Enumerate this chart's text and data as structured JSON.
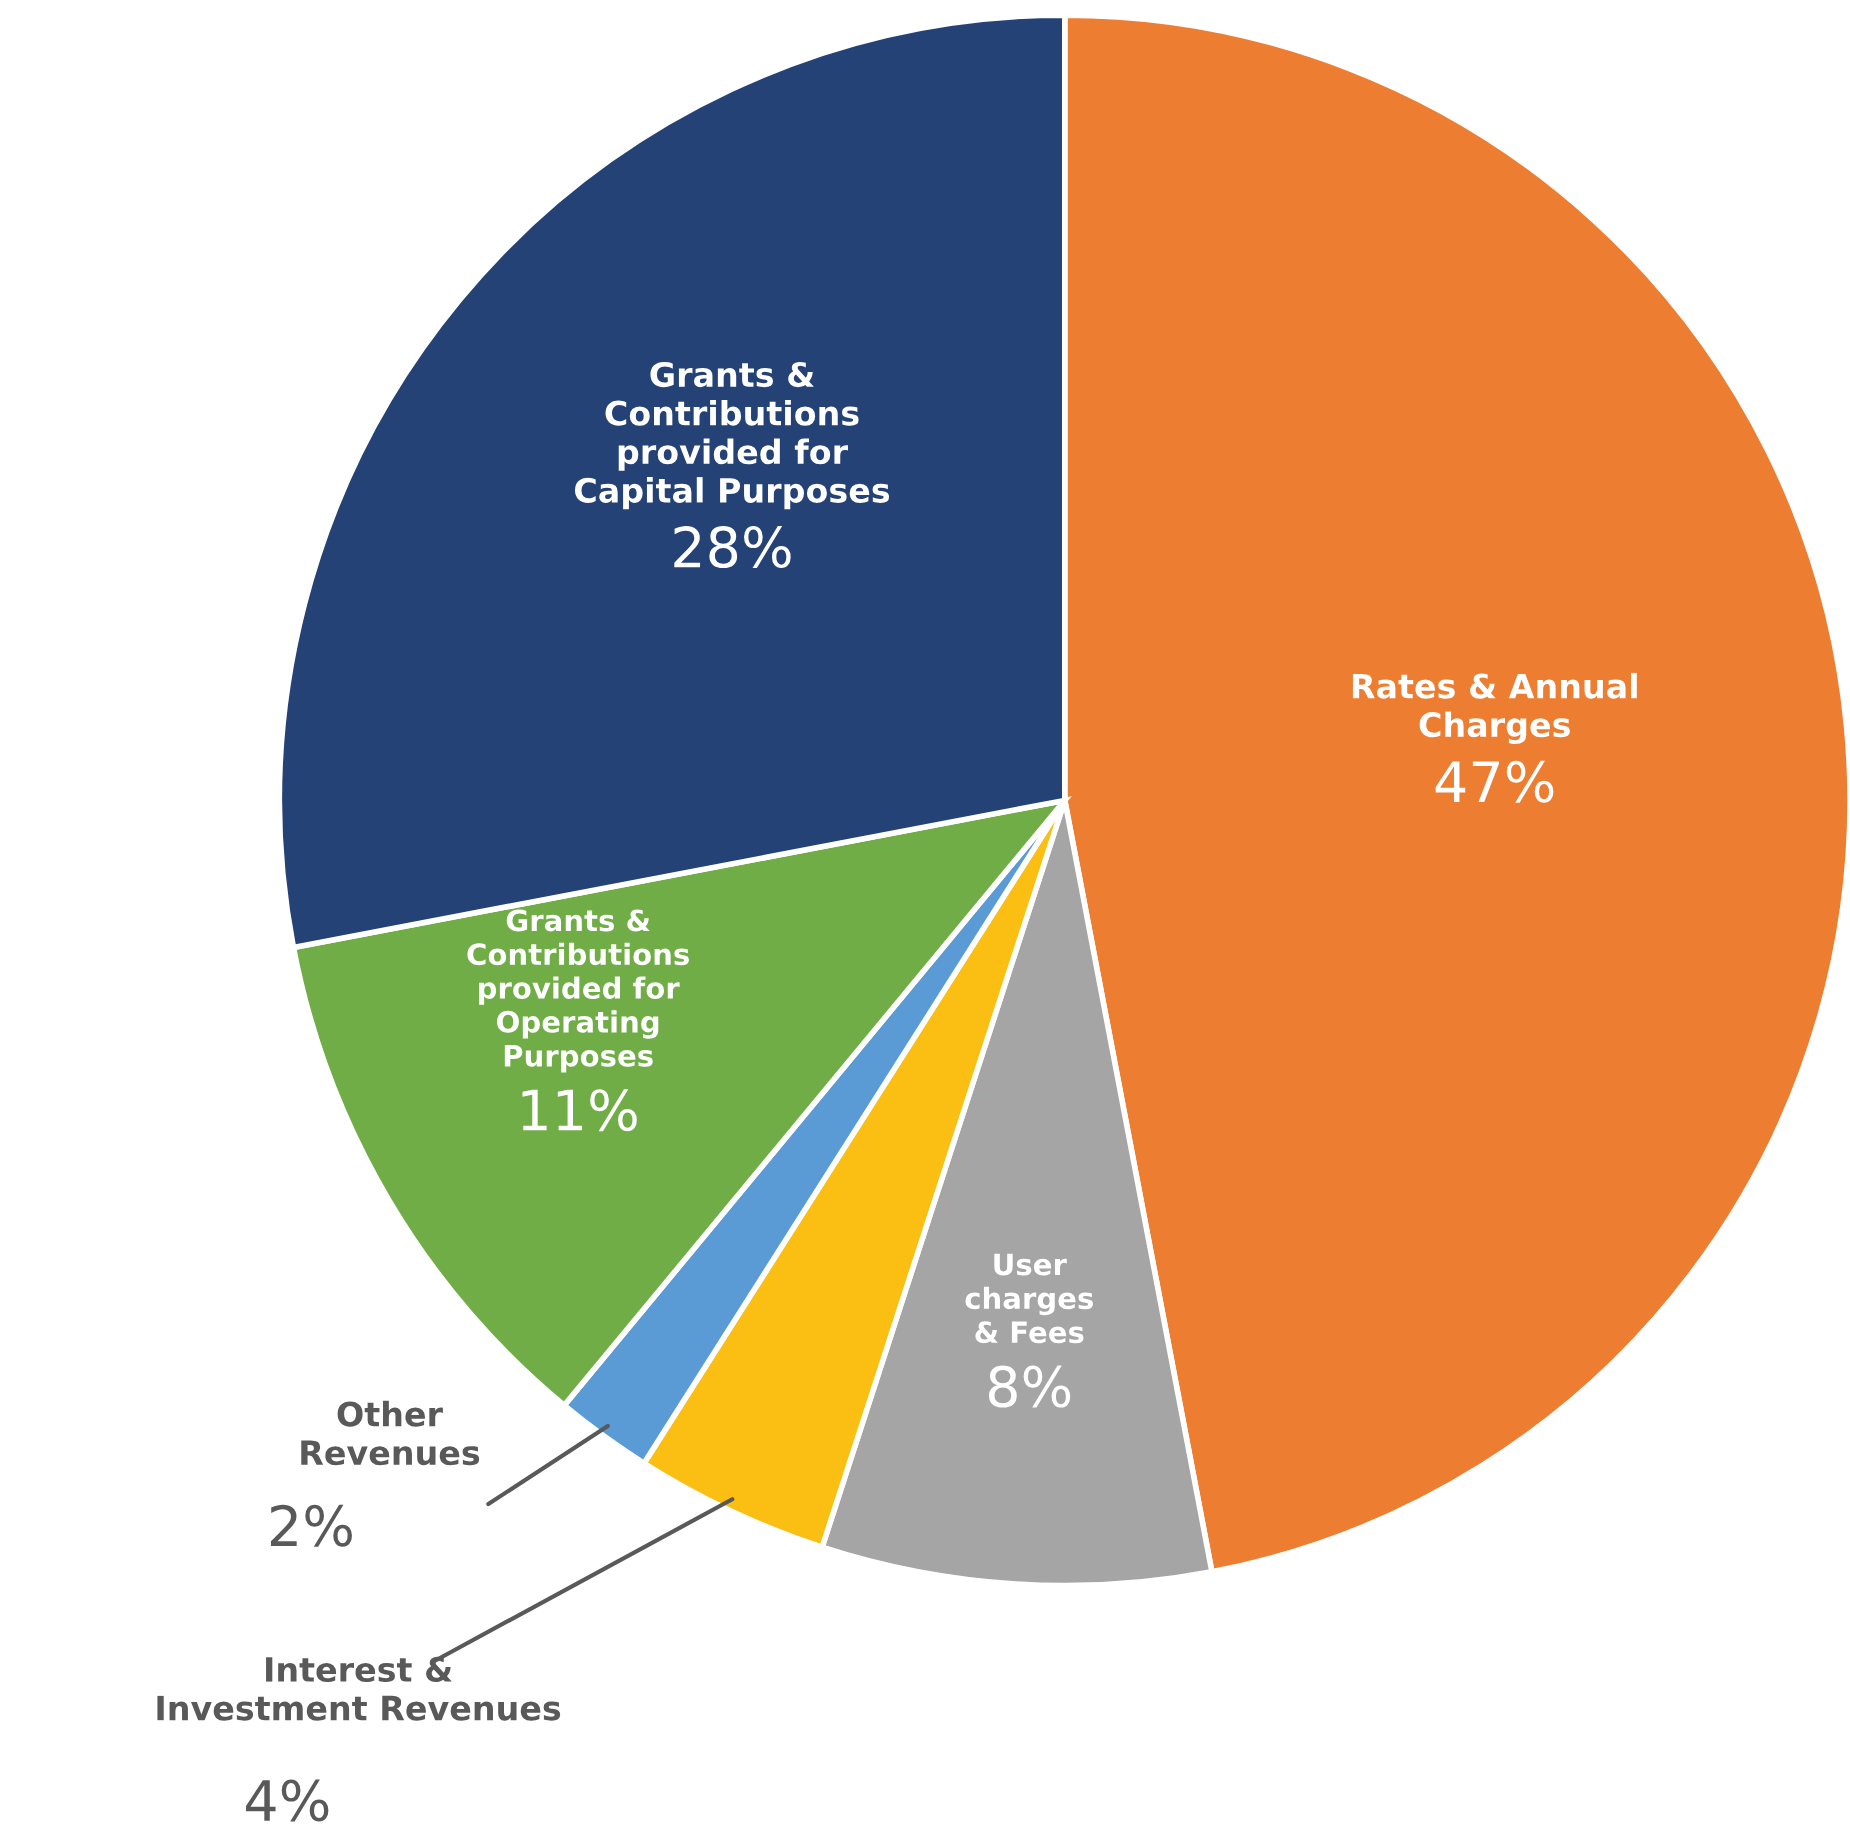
{
  "chart_data": {
    "type": "pie",
    "categories": [
      "Rates & Annual\nCharges",
      "User\ncharges\n& Fees",
      "Interest &\nInvestment Revenues",
      "Other\nRevenues",
      "Grants &\nContributions\nprovided for\nOperating\nPurposes",
      "Grants &\nContributions\nprovided for\nCapital Purposes"
    ],
    "values": [
      47,
      8,
      4,
      2,
      11,
      28
    ],
    "colors": [
      "#ed7d31",
      "#a5a5a5",
      "#fbbf13",
      "#5b9bd5",
      "#70ad47",
      "#244275"
    ],
    "value_labels": [
      "47%",
      "8%",
      "4%",
      "2%",
      "11%",
      "28%"
    ]
  }
}
